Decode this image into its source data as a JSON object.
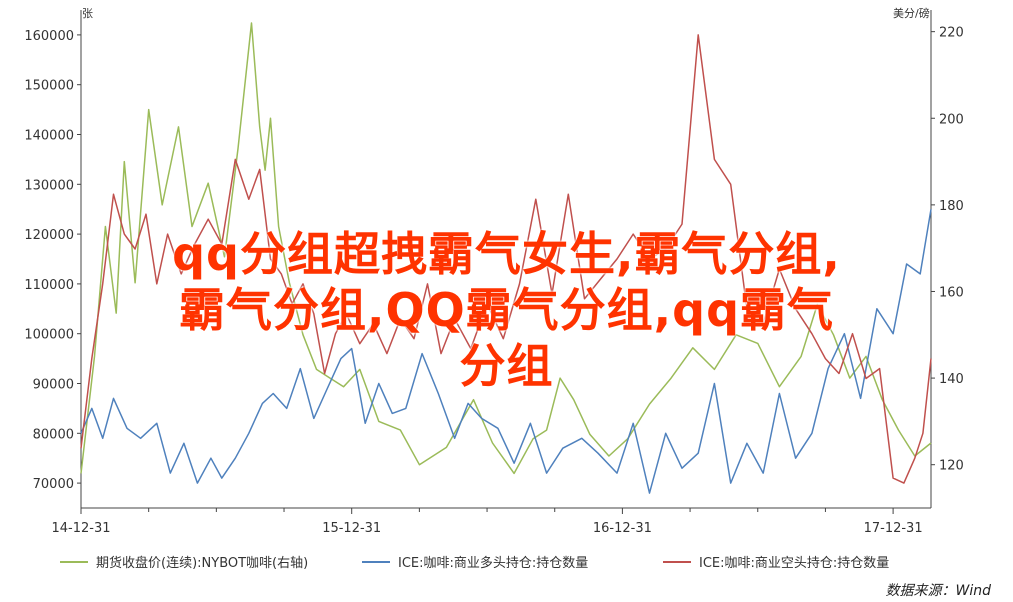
{
  "chart_data": {
    "type": "line",
    "left_axis_unit": "张",
    "right_axis_unit": "美分/磅",
    "left_ylim": [
      65000,
      165000
    ],
    "left_ticks": [
      70000,
      80000,
      90000,
      100000,
      110000,
      120000,
      130000,
      140000,
      150000,
      160000
    ],
    "right_ylim": [
      110,
      225
    ],
    "right_ticks": [
      120,
      140,
      160,
      180,
      200,
      220
    ],
    "x_ticks": [
      "14-12-31",
      "15-12-31",
      "16-12-31",
      "17-12-31"
    ],
    "x_range": [
      2014.0,
      2017.14
    ],
    "grid": false,
    "legend_position": "bottom",
    "series": [
      {
        "name": "期货收盘价(连续):NYBOT咖啡(右轴)",
        "axis": "right",
        "color": "#9bbb59",
        "x": [
          2014.0,
          2014.05,
          2014.09,
          2014.13,
          2014.16,
          2014.2,
          2014.25,
          2014.3,
          2014.36,
          2014.41,
          2014.47,
          2014.53,
          2014.58,
          2014.63,
          2014.66,
          2014.68,
          2014.7,
          2014.73,
          2014.77,
          2014.82,
          2014.87,
          2014.92,
          2014.97,
          2015.03,
          2015.1,
          2015.18,
          2015.25,
          2015.35,
          2015.45,
          2015.52,
          2015.6,
          2015.67,
          2015.72,
          2015.77,
          2015.82,
          2015.88,
          2015.95,
          2016.02,
          2016.1,
          2016.18,
          2016.26,
          2016.34,
          2016.42,
          2016.5,
          2016.58,
          2016.66,
          2016.72,
          2016.78,
          2016.84,
          2016.9,
          2016.96,
          2017.02,
          2017.08,
          2017.14
        ],
        "values": [
          118,
          145,
          175,
          155,
          190,
          162,
          202,
          180,
          198,
          175,
          185,
          168,
          193,
          222,
          198,
          188,
          200,
          175,
          162,
          150,
          142,
          140,
          138,
          142,
          130,
          128,
          120,
          124,
          135,
          125,
          118,
          126,
          128,
          140,
          135,
          127,
          122,
          126,
          134,
          140,
          147,
          142,
          150,
          148,
          138,
          145,
          157,
          150,
          140,
          145,
          135,
          128,
          122,
          125
        ]
      },
      {
        "name": "ICE:咖啡:商业多头持仓:持仓数量",
        "axis": "left",
        "color": "#4f81bd",
        "x": [
          2014.0,
          2014.04,
          2014.08,
          2014.12,
          2014.17,
          2014.22,
          2014.28,
          2014.33,
          2014.38,
          2014.43,
          2014.48,
          2014.52,
          2014.57,
          2014.62,
          2014.67,
          2014.71,
          2014.76,
          2014.81,
          2014.86,
          2014.91,
          2014.96,
          2015.0,
          2015.05,
          2015.1,
          2015.15,
          2015.2,
          2015.26,
          2015.32,
          2015.38,
          2015.43,
          2015.48,
          2015.54,
          2015.6,
          2015.66,
          2015.72,
          2015.78,
          2015.85,
          2015.91,
          2015.98,
          2016.04,
          2016.1,
          2016.16,
          2016.22,
          2016.28,
          2016.34,
          2016.4,
          2016.46,
          2016.52,
          2016.58,
          2016.64,
          2016.7,
          2016.76,
          2016.82,
          2016.88,
          2016.94,
          2017.0,
          2017.05,
          2017.1,
          2017.14
        ],
        "values": [
          80000,
          85000,
          79000,
          87000,
          81000,
          79000,
          82000,
          72000,
          78000,
          70000,
          75000,
          71000,
          75000,
          80000,
          86000,
          88000,
          85000,
          93000,
          83000,
          89000,
          95000,
          97000,
          82000,
          90000,
          84000,
          85000,
          96000,
          88000,
          79000,
          86000,
          83000,
          81000,
          74000,
          82000,
          72000,
          77000,
          79000,
          76000,
          72000,
          82000,
          68000,
          80000,
          73000,
          76000,
          90000,
          70000,
          78000,
          72000,
          88000,
          75000,
          80000,
          93000,
          100000,
          87000,
          105000,
          100000,
          114000,
          112000,
          125000
        ]
      },
      {
        "name": "ICE:咖啡:商业空头持仓:持仓数量",
        "axis": "left",
        "color": "#c0504d",
        "x": [
          2014.0,
          2014.04,
          2014.08,
          2014.12,
          2014.16,
          2014.2,
          2014.24,
          2014.28,
          2014.32,
          2014.37,
          2014.42,
          2014.47,
          2014.52,
          2014.57,
          2014.62,
          2014.66,
          2014.7,
          2014.74,
          2014.78,
          2014.82,
          2014.86,
          2014.9,
          2014.94,
          2014.98,
          2015.03,
          2015.08,
          2015.13,
          2015.18,
          2015.23,
          2015.28,
          2015.33,
          2015.38,
          2015.44,
          2015.5,
          2015.56,
          2015.62,
          2015.68,
          2015.74,
          2015.8,
          2015.86,
          2015.92,
          2015.98,
          2016.04,
          2016.1,
          2016.16,
          2016.22,
          2016.28,
          2016.34,
          2016.4,
          2016.46,
          2016.52,
          2016.58,
          2016.64,
          2016.7,
          2016.75,
          2016.8,
          2016.85,
          2016.9,
          2016.95,
          2017.0,
          2017.04,
          2017.08,
          2017.11,
          2017.14
        ],
        "values": [
          77000,
          95000,
          110000,
          128000,
          120000,
          117000,
          124000,
          110000,
          120000,
          112000,
          118000,
          123000,
          118000,
          135000,
          127000,
          133000,
          115000,
          112000,
          106000,
          110000,
          104000,
          92000,
          100000,
          104000,
          98000,
          102000,
          96000,
          103000,
          99000,
          110000,
          96000,
          103000,
          97000,
          106000,
          99000,
          110000,
          127000,
          108000,
          128000,
          107000,
          111000,
          115000,
          120000,
          115000,
          117000,
          122000,
          160000,
          135000,
          130000,
          105000,
          102000,
          113000,
          105000,
          100000,
          95000,
          92000,
          100000,
          91000,
          93000,
          71000,
          70000,
          75000,
          80000,
          95000
        ]
      }
    ]
  },
  "overlay_title": {
    "line1": "qq分组超拽霸气女生,霸气分组,",
    "line2": "霸气分组,QQ霸气分组,qq霸气",
    "line3": "分组"
  },
  "source_note": "数据来源：Wind"
}
